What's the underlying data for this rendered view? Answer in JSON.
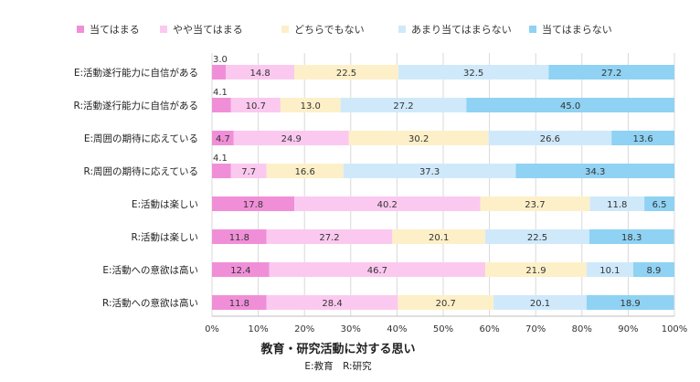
{
  "chart_data": {
    "type": "bar",
    "orientation": "horizontal",
    "stacked": "percent",
    "title": "教育・研究活動に対する思い",
    "subtitle": "E:教育　R:研究",
    "legend_position": "top",
    "xlim": [
      0,
      100
    ],
    "x_ticks": [
      "0%",
      "10%",
      "20%",
      "30%",
      "40%",
      "50%",
      "60%",
      "70%",
      "80%",
      "90%",
      "100%"
    ],
    "grid": true,
    "categories": [
      "E:活動遂行能力に自信がある",
      "R:活動遂行能力に自信がある",
      "E:周囲の期待に応えている",
      "R:周囲の期待に応えている",
      "E:活動は楽しい",
      "R:活動は楽しい",
      "E:活動への意欲は高い",
      "R:活動への意欲は高い"
    ],
    "series": [
      {
        "name": "当てはまる",
        "color": "#f08fd8",
        "values": [
          3.0,
          4.1,
          4.7,
          4.1,
          17.8,
          11.8,
          12.4,
          11.8
        ]
      },
      {
        "name": "やや当てはまる",
        "color": "#fbc9ef",
        "values": [
          14.8,
          10.7,
          24.9,
          7.7,
          40.2,
          27.2,
          46.7,
          28.4
        ]
      },
      {
        "name": "どちらでもない",
        "color": "#fdf0c8",
        "values": [
          22.5,
          13.0,
          30.2,
          16.6,
          23.7,
          20.1,
          21.9,
          20.7
        ]
      },
      {
        "name": "あまり当てはまらない",
        "color": "#cfe9fb",
        "values": [
          32.5,
          27.2,
          26.6,
          37.3,
          11.8,
          22.5,
          10.1,
          20.1
        ]
      },
      {
        "name": "当てはまらない",
        "color": "#8fd2f3",
        "values": [
          27.2,
          45.0,
          13.6,
          34.3,
          6.5,
          18.3,
          8.9,
          18.9
        ]
      }
    ]
  }
}
